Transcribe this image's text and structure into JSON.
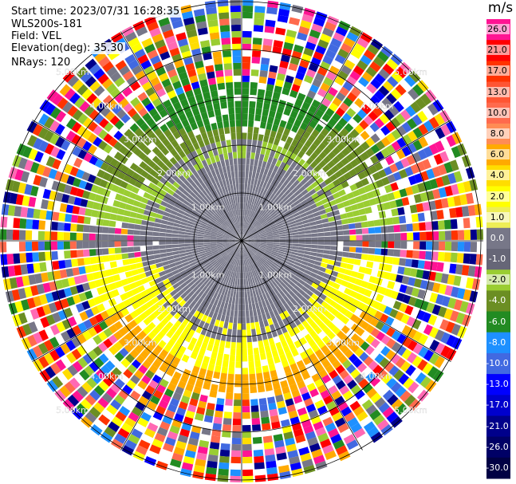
{
  "header": {
    "start_time": "Start time: 2023/07/31 16:28:35",
    "instrument": "WLS200s-181",
    "field": "Field: VEL",
    "elevation": "Elevation(deg): 35.30",
    "nrays": "NRays: 120"
  },
  "range_rings": [
    "1.00km",
    "2.00km",
    "3.00km",
    "4.00km",
    "5.00km"
  ],
  "colorbar": {
    "unit": "m/s",
    "levels": [
      {
        "label": "26.0",
        "color": "#ff1493"
      },
      {
        "label": "21.0",
        "color": "#ff0000"
      },
      {
        "label": "17.0",
        "color": "#ff3300"
      },
      {
        "label": "13.0",
        "color": "#ff5533"
      },
      {
        "label": "10.0",
        "color": "#ff6a4d"
      },
      {
        "label": "8.0",
        "color": "#ff8c55"
      },
      {
        "label": "6.0",
        "color": "#ffaa00"
      },
      {
        "label": "4.0",
        "color": "#ffdd00"
      },
      {
        "label": "2.0",
        "color": "#ffff00"
      },
      {
        "label": "1.0",
        "color": "#eeee55"
      },
      {
        "label": "0.0",
        "color": "#777788"
      },
      {
        "label": "-1.0",
        "color": "#666677"
      },
      {
        "label": "-2.0",
        "color": "#9acd32"
      },
      {
        "label": "-4.0",
        "color": "#6b8e23"
      },
      {
        "label": "-6.0",
        "color": "#228b22"
      },
      {
        "label": "-8.0",
        "color": "#1e90ff"
      },
      {
        "label": "-10.0",
        "color": "#4169e1"
      },
      {
        "label": "-13.0",
        "color": "#0000ff"
      },
      {
        "label": "-17.0",
        "color": "#0000cd"
      },
      {
        "label": "-21.0",
        "color": "#00008b"
      },
      {
        "label": "-26.0",
        "color": "#000066"
      },
      {
        "label": "-30.0",
        "color": "#000044"
      }
    ]
  },
  "noise_palette": [
    "#ff1493",
    "#ff0000",
    "#ff3300",
    "#ff6a4d",
    "#ffaa00",
    "#ffff00",
    "#9acd32",
    "#228b22",
    "#1e90ff",
    "#0000ff",
    "#00008b",
    "#ff69b4",
    "#777788",
    "#6b8e23",
    "#ffdd00",
    "#4169e1"
  ],
  "signal_colors": {
    "north_far": "#ffaa00",
    "north_near": "#ffff00",
    "center": "#777788",
    "south_near": "#9acd32",
    "south_mid": "#6b8e23",
    "south_far": "#228b22"
  }
}
